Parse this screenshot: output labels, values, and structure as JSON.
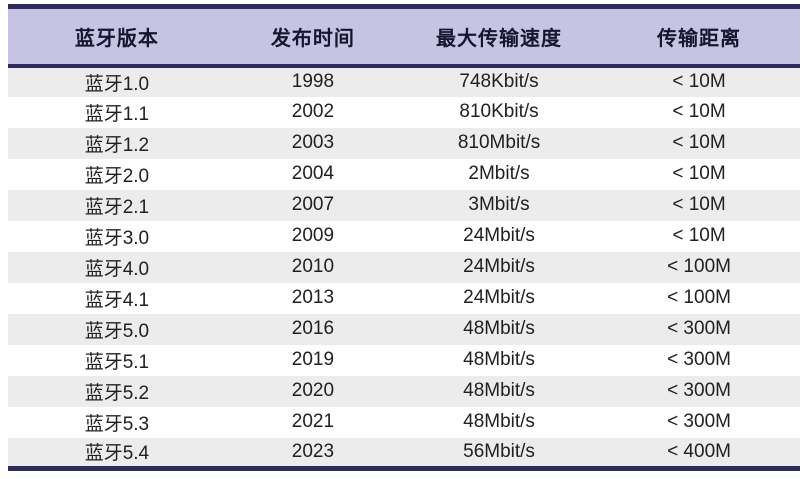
{
  "chart_data": {
    "type": "table",
    "title": "",
    "columns": [
      "蓝牙版本",
      "发布时间",
      "最大传输速度",
      "传输距离"
    ],
    "rows": [
      [
        "蓝牙1.0",
        "1998",
        "748Kbit/s",
        "< 10M"
      ],
      [
        "蓝牙1.1",
        "2002",
        "810Kbit/s",
        "< 10M"
      ],
      [
        "蓝牙1.2",
        "2003",
        "810Mbit/s",
        "< 10M"
      ],
      [
        "蓝牙2.0",
        "2004",
        "2Mbit/s",
        "< 10M"
      ],
      [
        "蓝牙2.1",
        "2007",
        "3Mbit/s",
        "< 10M"
      ],
      [
        "蓝牙3.0",
        "2009",
        "24Mbit/s",
        "< 10M"
      ],
      [
        "蓝牙4.0",
        "2010",
        "24Mbit/s",
        "< 100M"
      ],
      [
        "蓝牙4.1",
        "2013",
        "24Mbit/s",
        "< 100M"
      ],
      [
        "蓝牙5.0",
        "2016",
        "48Mbit/s",
        "< 300M"
      ],
      [
        "蓝牙5.1",
        "2019",
        "48Mbit/s",
        "< 300M"
      ],
      [
        "蓝牙5.2",
        "2020",
        "48Mbit/s",
        "< 300M"
      ],
      [
        "蓝牙5.3",
        "2021",
        "48Mbit/s",
        "< 300M"
      ],
      [
        "蓝牙5.4",
        "2023",
        "56Mbit/s",
        "< 400M"
      ]
    ]
  },
  "colors": {
    "header_bg": "#c7c3e3",
    "border_navy": "#2e2b5f",
    "row_alt_bg": "#ececec",
    "row_bg": "#ffffff",
    "header_text": "#16162e",
    "cell_text": "#212121"
  }
}
